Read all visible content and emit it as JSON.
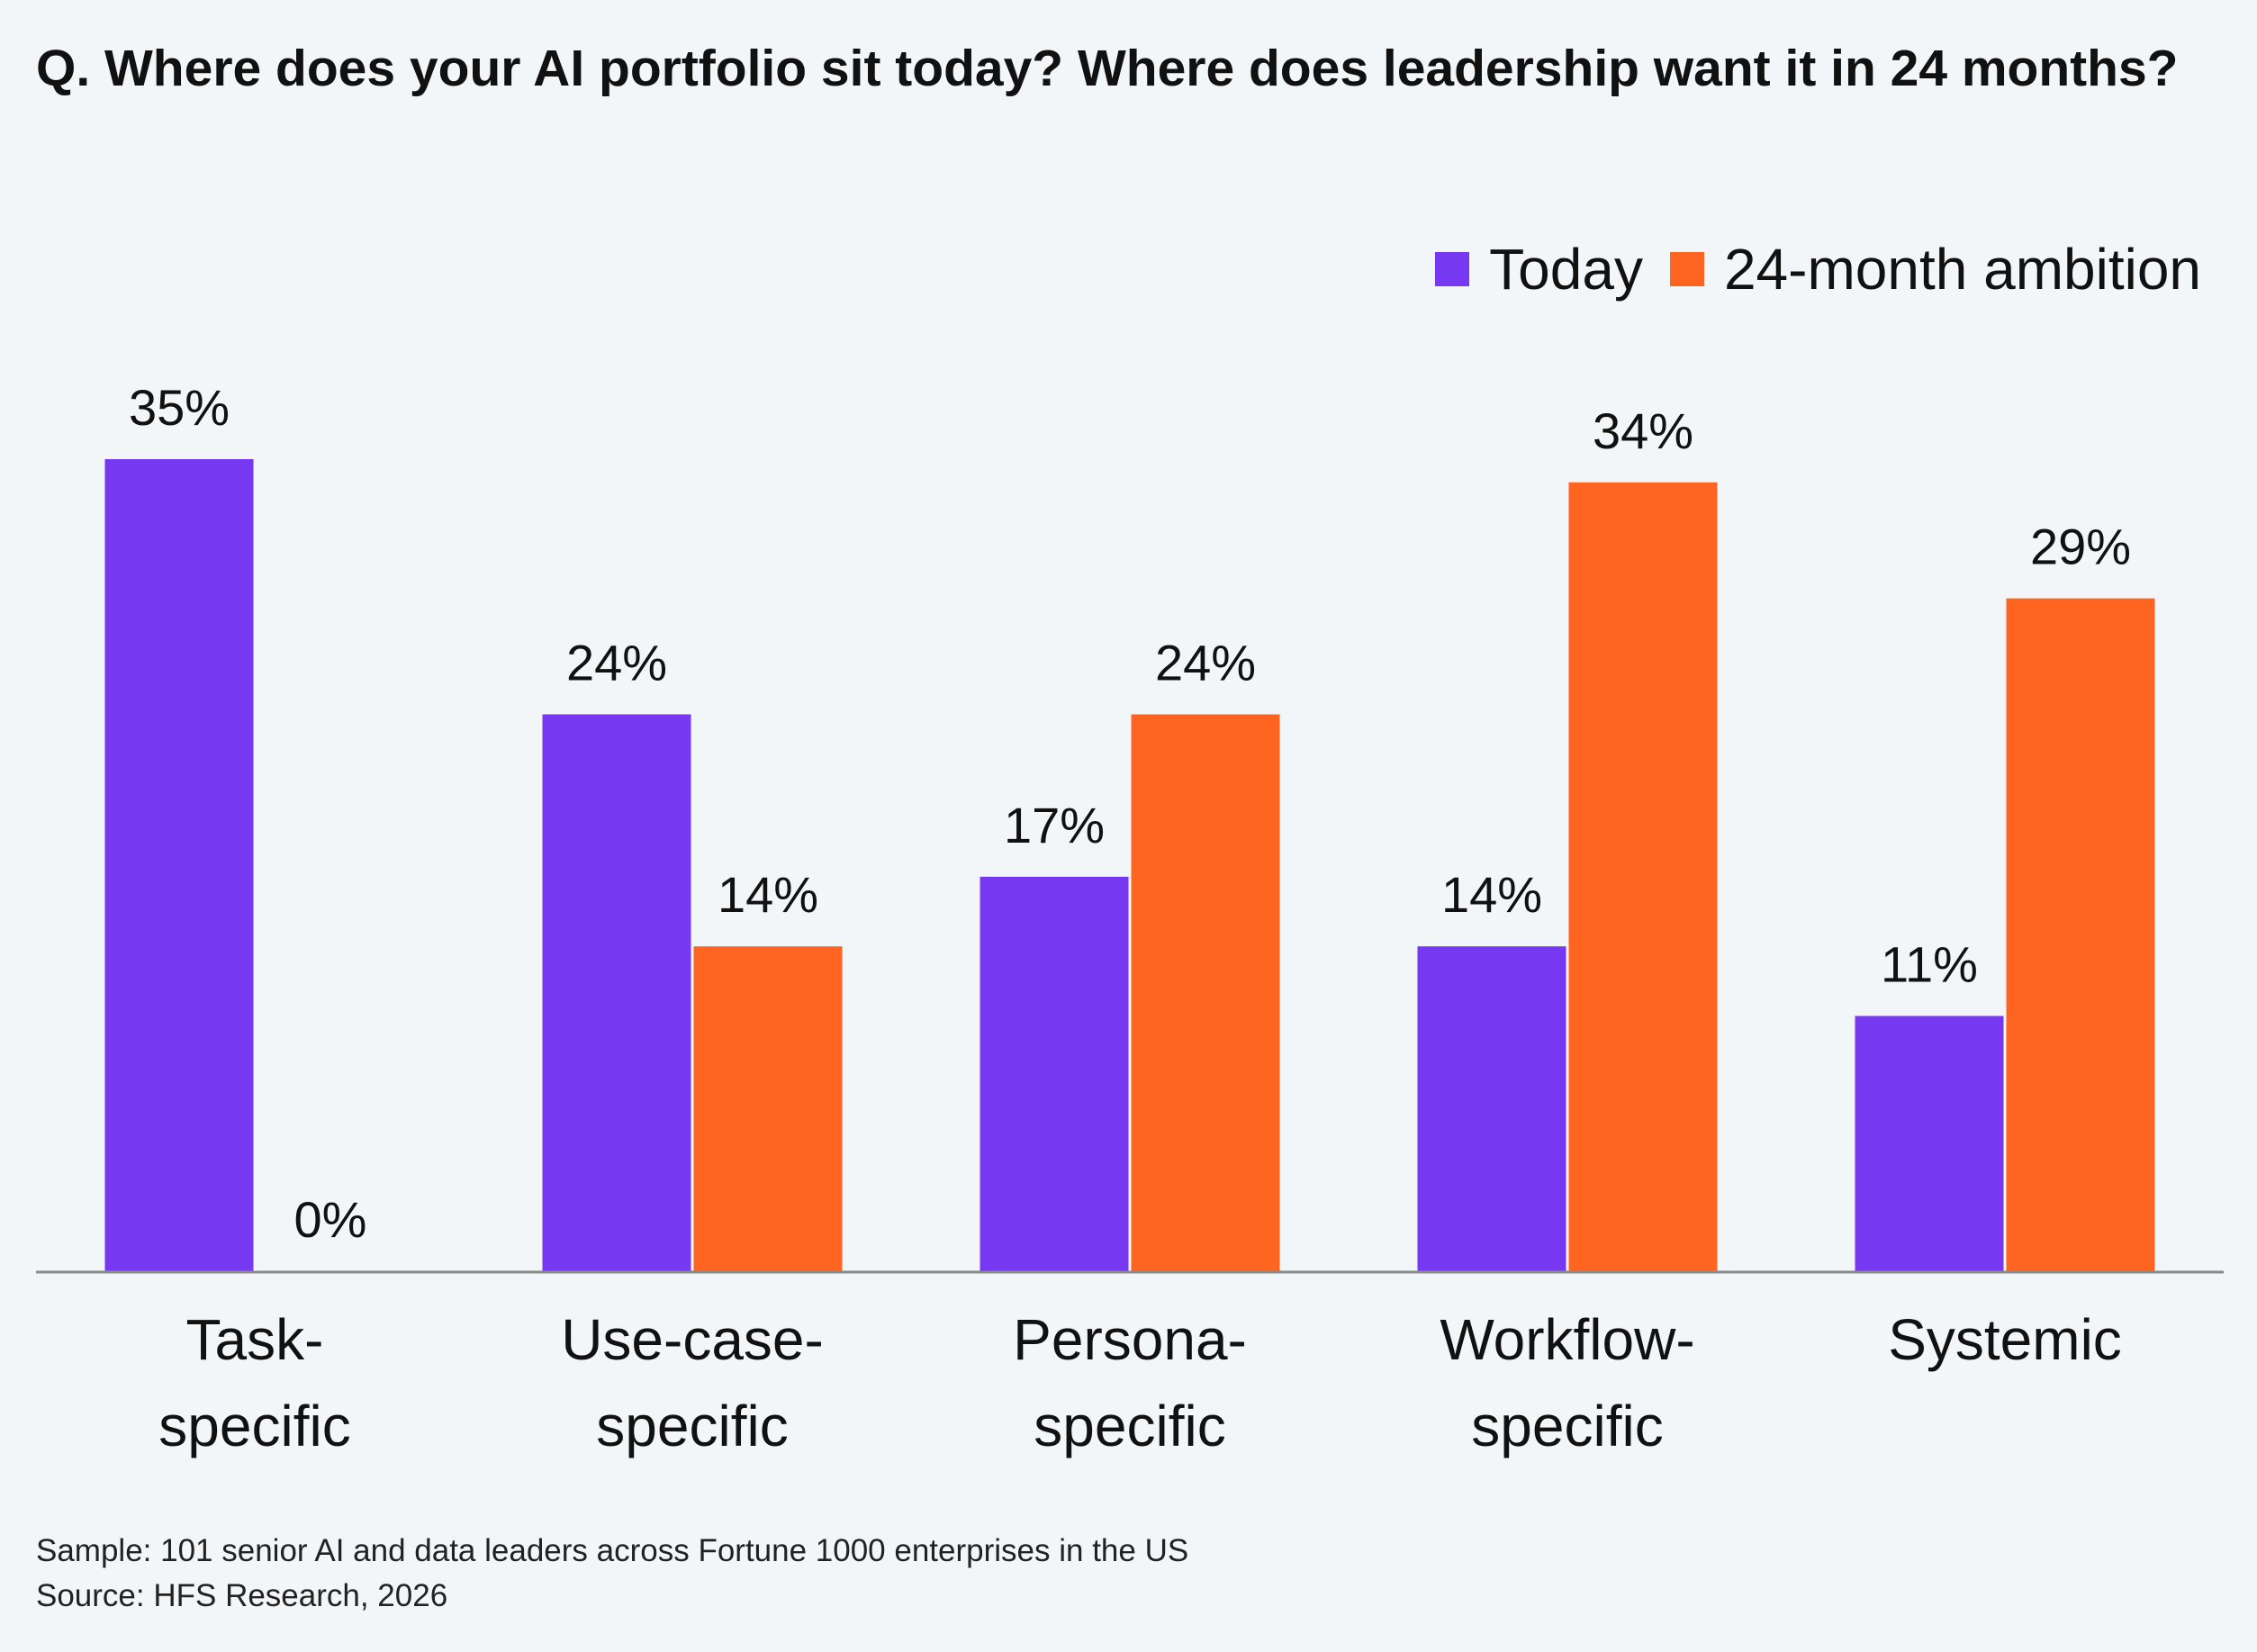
{
  "title": "Q. Where does your AI portfolio sit today? Where does leadership want it in 24 months?",
  "legend": [
    {
      "name": "Today",
      "color": "#7638f0"
    },
    {
      "name": "24-month ambition",
      "color": "#ff6521"
    }
  ],
  "chart_data": {
    "type": "bar",
    "categories": [
      [
        "Task-",
        "specific"
      ],
      [
        "Use-case-",
        "specific"
      ],
      [
        "Persona-",
        "specific"
      ],
      [
        "Workflow-",
        "specific"
      ],
      [
        "Systemic"
      ]
    ],
    "series": [
      {
        "name": "Today",
        "values": [
          35,
          24,
          17,
          14,
          11
        ],
        "labels": [
          "35%",
          "24%",
          "17%",
          "14%",
          "11%"
        ],
        "color": "#7638f0"
      },
      {
        "name": "24-month ambition",
        "values": [
          0,
          14,
          24,
          34,
          29
        ],
        "labels": [
          "0%",
          "14%",
          "24%",
          "34%",
          "29%"
        ],
        "color": "#ff6521"
      }
    ],
    "ylim": [
      0,
      35
    ],
    "grid": false,
    "legend_position": "top-right"
  },
  "footnote": {
    "sample": "Sample: 101 senior AI and data leaders across Fortune 1000 enterprises in the US",
    "source": "Source: HFS Research, 2026"
  }
}
